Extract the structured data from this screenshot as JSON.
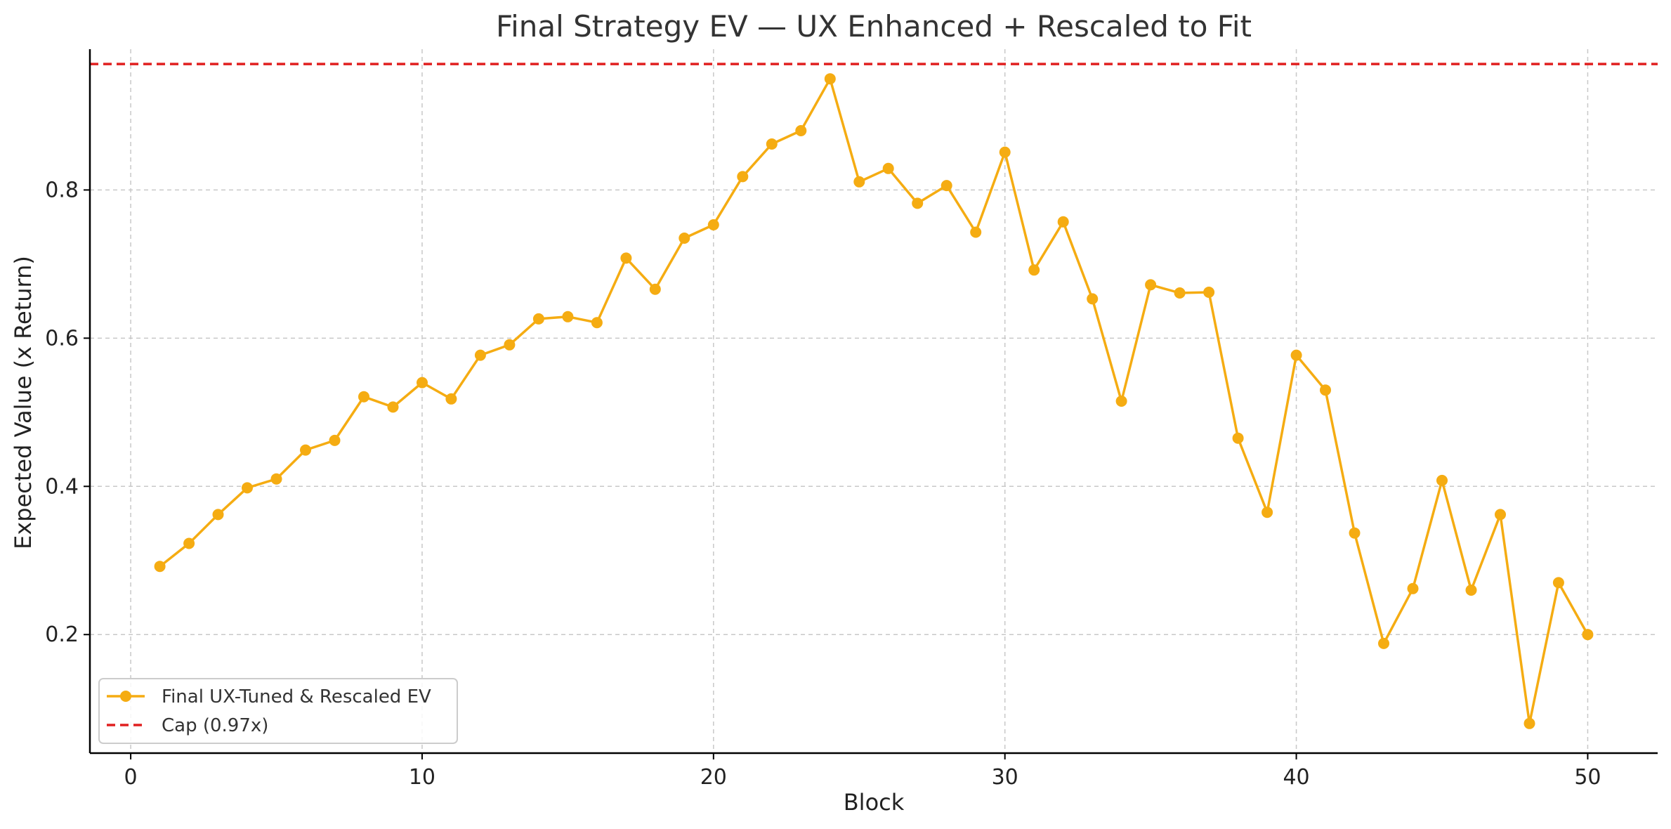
{
  "chart_data": {
    "type": "line",
    "title": "Final Strategy EV — UX Enhanced + Rescaled to Fit",
    "xlabel": "Block",
    "ylabel": "Expected Value (x Return)",
    "xlim": [
      -1.4,
      52.4
    ],
    "ylim": [
      0.04,
      0.99
    ],
    "xticks": [
      0,
      10,
      20,
      30,
      40,
      50
    ],
    "yticks": [
      0.2,
      0.4,
      0.6,
      0.8
    ],
    "xtick_labels": [
      "0",
      "10",
      "20",
      "30",
      "40",
      "50"
    ],
    "ytick_labels": [
      "0.2",
      "0.4",
      "0.6",
      "0.8"
    ],
    "grid": true,
    "legend_position": "lower-left",
    "series": [
      {
        "name": "Final UX-Tuned & Rescaled EV",
        "color": "#F5AC12",
        "marker": "circle",
        "x": [
          1,
          2,
          3,
          4,
          5,
          6,
          7,
          8,
          9,
          10,
          11,
          12,
          13,
          14,
          15,
          16,
          17,
          18,
          19,
          20,
          21,
          22,
          23,
          24,
          25,
          26,
          27,
          28,
          29,
          30,
          31,
          32,
          33,
          34,
          35,
          36,
          37,
          38,
          39,
          40,
          41,
          42,
          43,
          44,
          45,
          46,
          47,
          48,
          49,
          50
        ],
        "y": [
          0.292,
          0.323,
          0.362,
          0.398,
          0.41,
          0.449,
          0.462,
          0.521,
          0.507,
          0.54,
          0.518,
          0.577,
          0.591,
          0.626,
          0.629,
          0.621,
          0.708,
          0.666,
          0.735,
          0.753,
          0.818,
          0.862,
          0.88,
          0.95,
          0.811,
          0.829,
          0.782,
          0.806,
          0.743,
          0.851,
          0.692,
          0.757,
          0.653,
          0.515,
          0.672,
          0.661,
          0.662,
          0.465,
          0.365,
          0.577,
          0.53,
          0.337,
          0.188,
          0.262,
          0.408,
          0.26,
          0.362,
          0.08,
          0.27,
          0.2
        ]
      }
    ],
    "reference_lines": [
      {
        "name": "Cap (0.97x)",
        "y": 0.97,
        "color": "#E02020",
        "style": "dashed"
      }
    ]
  }
}
